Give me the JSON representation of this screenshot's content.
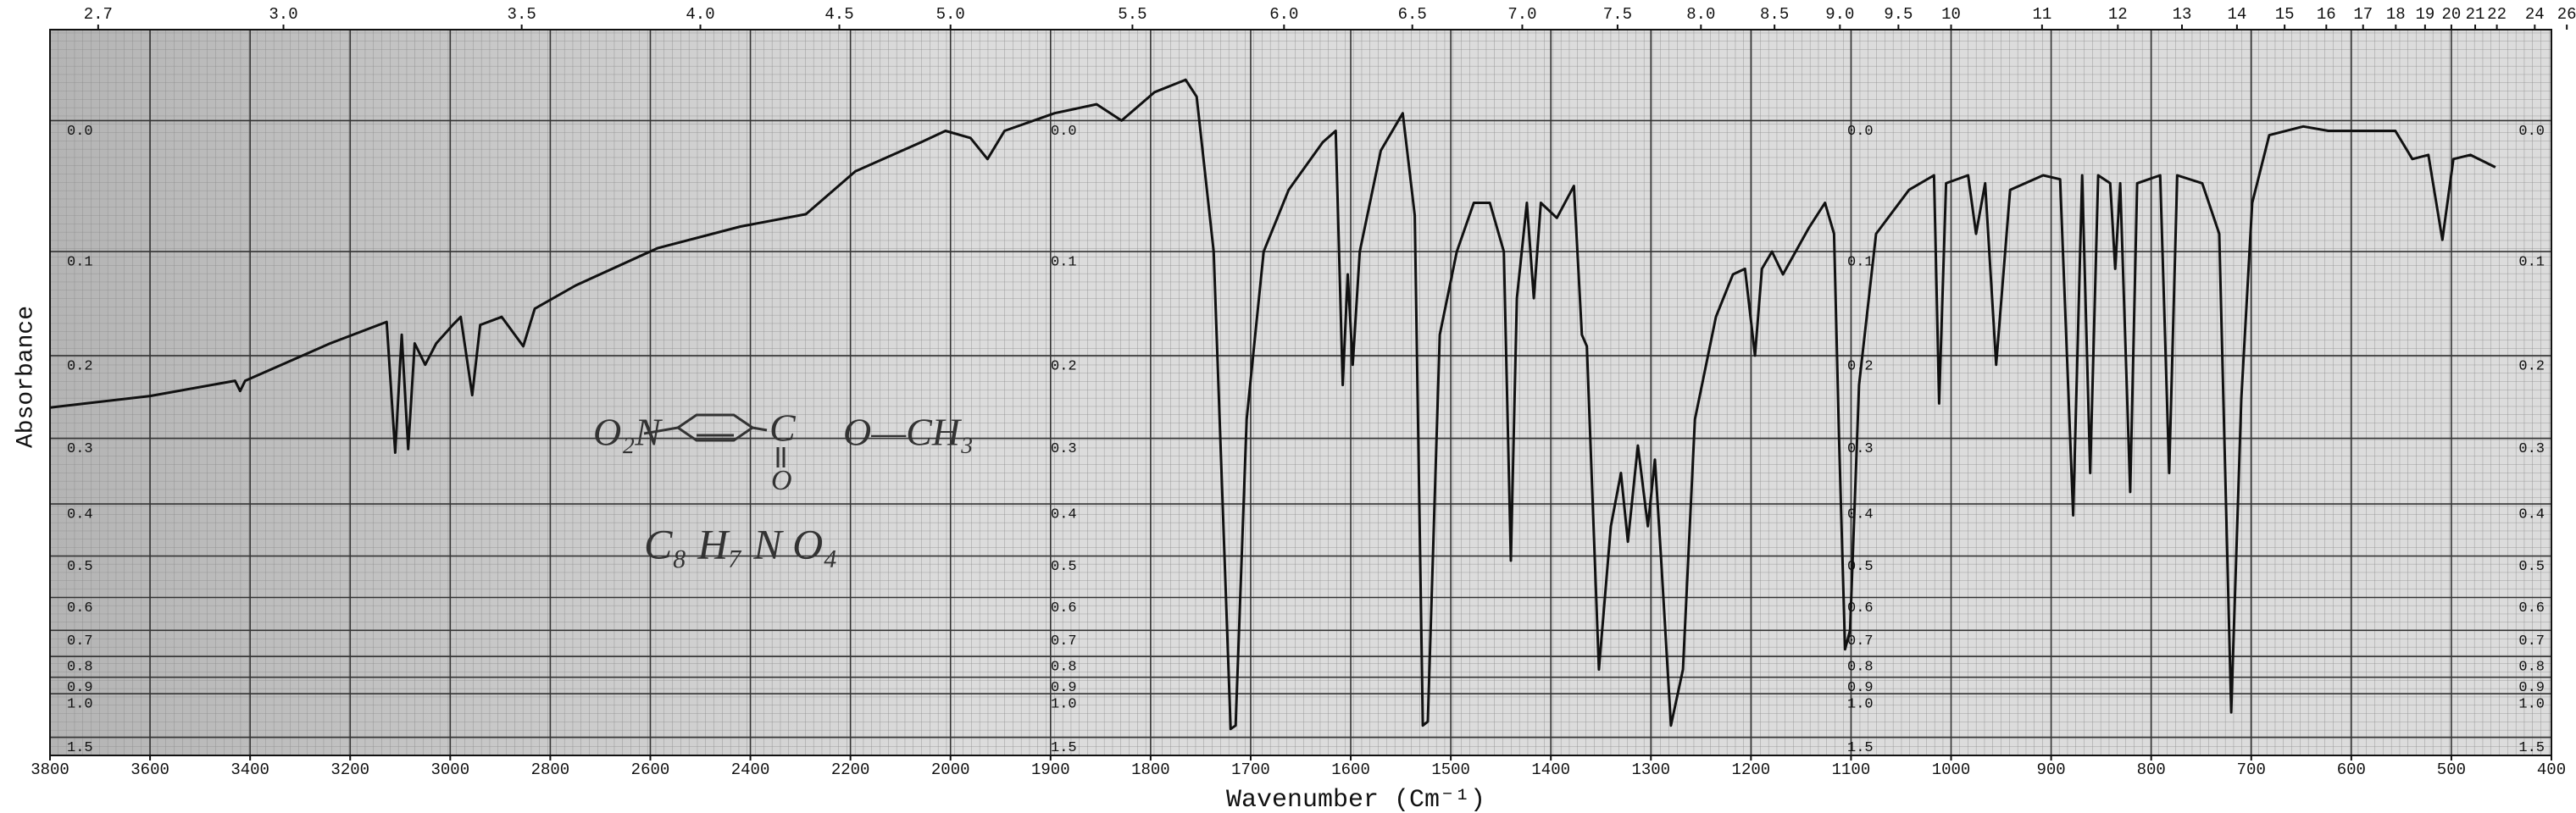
{
  "chart_data": {
    "type": "line",
    "y_label": "Absorbance",
    "x_label": "Wavenumber (Cm⁻¹)",
    "annotations": [
      "O₂N",
      "C",
      "O",
      "O—CH₃",
      "C₈ H₇ N O₄"
    ],
    "xlim": [
      3800,
      400
    ],
    "x_scale_change": {
      "at": 2000,
      "factor": 2
    },
    "yscale": "transmittance",
    "ylim": [
      -0.058,
      2.5
    ],
    "grid": true,
    "color": "#111111",
    "xticks": [
      3800,
      3600,
      3400,
      3200,
      3000,
      2800,
      2600,
      2400,
      2200,
      2000,
      1900,
      1800,
      1700,
      1600,
      1500,
      1400,
      1300,
      1200,
      1100,
      1000,
      900,
      800,
      700,
      600,
      500,
      400
    ],
    "x2ticks": [
      2.7,
      {
        "value": 3,
        "label": "3.0"
      },
      3.5,
      {
        "value": 4,
        "label": "4.0"
      },
      4.5,
      {
        "value": 5,
        "label": "5.0"
      },
      5.5,
      {
        "value": 6,
        "label": "6.0"
      },
      6.5,
      {
        "value": 7,
        "label": "7.0"
      },
      7.5,
      {
        "value": 8,
        "label": "8.0"
      },
      8.5,
      {
        "value": 9,
        "label": "9.0"
      },
      9.5,
      10,
      11,
      12,
      13,
      14,
      15,
      16,
      17,
      18,
      19,
      20,
      21,
      22,
      24,
      26
    ],
    "yticks": [
      {
        "value": 0,
        "label": "0.0"
      },
      0.1,
      0.2,
      0.3,
      0.4,
      0.5,
      0.6,
      0.7,
      0.8,
      0.9,
      {
        "value": 1,
        "label": "1.0"
      },
      1.5
    ],
    "x": [
      3800,
      3600,
      3430,
      3420,
      3410,
      3240,
      3127,
      3110,
      3097,
      3084,
      3071,
      3050,
      3028,
      2995,
      2979,
      2956,
      2940,
      2897,
      2854,
      2831,
      2749,
      2585,
      2420,
      2289,
      2190,
      2059,
      2010,
      1980,
      1963,
      1946,
      1896,
      1854,
      1829,
      1796,
      1765,
      1754,
      1737,
      1720,
      1715,
      1704,
      1687,
      1662,
      1628,
      1615,
      1608,
      1603,
      1598,
      1591,
      1570,
      1548,
      1536,
      1528,
      1523,
      1511,
      1494,
      1477,
      1461,
      1447,
      1440,
      1434,
      1424,
      1417,
      1410,
      1394,
      1377,
      1369,
      1364,
      1352,
      1340,
      1330,
      1323,
      1313,
      1303,
      1296,
      1290,
      1280,
      1268,
      1256,
      1235,
      1218,
      1206,
      1196,
      1189,
      1179,
      1168,
      1142,
      1126,
      1117,
      1112,
      1106,
      1101,
      1092,
      1075,
      1042,
      1017,
      1012,
      1005,
      983,
      975,
      966,
      955,
      941,
      908,
      891,
      878,
      869,
      861,
      853,
      841,
      836,
      831,
      821,
      814,
      791,
      782,
      774,
      749,
      732,
      720,
      710,
      699,
      682,
      648,
      623,
      556,
      539,
      523,
      509,
      498,
      481,
      456
    ],
    "values": [
      0.26,
      0.246,
      0.228,
      0.24,
      0.228,
      0.187,
      0.165,
      0.32,
      0.178,
      0.315,
      0.187,
      0.21,
      0.187,
      0.168,
      0.16,
      0.245,
      0.168,
      0.16,
      0.19,
      0.152,
      0.13,
      0.097,
      0.079,
      0.069,
      0.036,
      0.015,
      0.007,
      0.012,
      0.027,
      0.007,
      -0.005,
      -0.011,
      0,
      -0.019,
      -0.027,
      -0.016,
      0.1,
      1.35,
      1.3,
      0.275,
      0.1,
      0.05,
      0.015,
      0.007,
      0.233,
      0.12,
      0.21,
      0.1,
      0.021,
      -0.005,
      0.07,
      1.3,
      1.25,
      0.178,
      0.1,
      0.06,
      0.06,
      0.1,
      0.51,
      0.142,
      0.06,
      0.142,
      0.06,
      0.072,
      0.047,
      0.178,
      0.19,
      0.86,
      0.44,
      0.35,
      0.47,
      0.31,
      0.44,
      0.33,
      0.5,
      1.3,
      0.86,
      0.275,
      0.16,
      0.12,
      0.115,
      0.2,
      0.115,
      0.1,
      0.12,
      0.08,
      0.06,
      0.085,
      0.3,
      0.77,
      0.7,
      0.233,
      0.085,
      0.05,
      0.039,
      0.255,
      0.045,
      0.039,
      0.085,
      0.045,
      0.21,
      0.05,
      0.039,
      0.042,
      0.42,
      0.039,
      0.35,
      0.039,
      0.045,
      0.115,
      0.045,
      0.38,
      0.045,
      0.039,
      0.35,
      0.039,
      0.045,
      0.085,
      1.15,
      0.25,
      0.06,
      0.01,
      0.004,
      0.007,
      0.007,
      0.027,
      0.024,
      0.09,
      0.027,
      0.024,
      0.033
    ]
  }
}
